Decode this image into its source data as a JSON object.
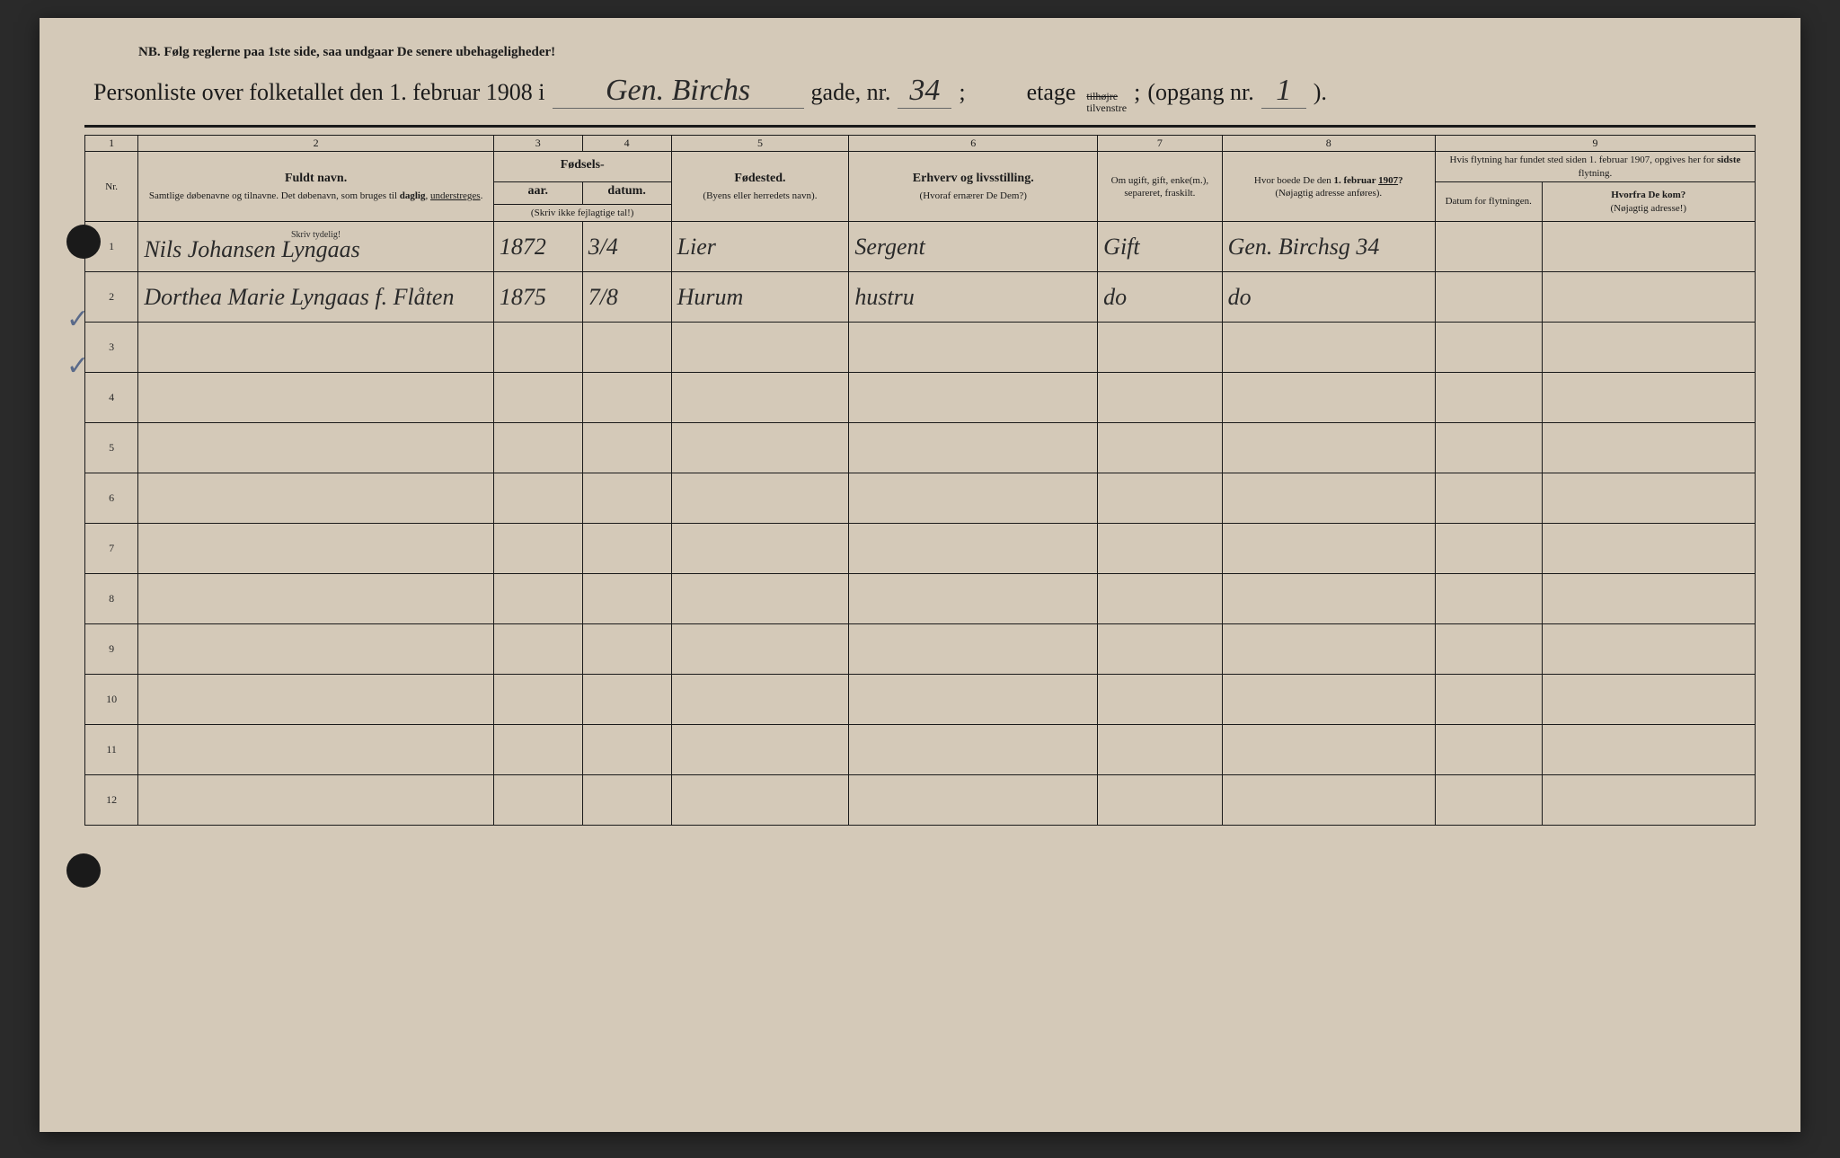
{
  "header": {
    "nb_text": "NB.  Følg reglerne paa 1ste side, saa undgaar De senere ubehageligheder!",
    "title_prefix": "Personliste over folketallet den 1. februar 1908 i",
    "street_name": "Gen. Birchs",
    "gade_label": "gade, nr.",
    "nr": "34",
    "semicolon": ";",
    "etage_label": "etage",
    "etage_top": "tilhøjre",
    "etage_bottom": "tilvenstre",
    "opgang_label": "(opgang nr.",
    "opgang_nr": "1",
    "opgang_close": ")."
  },
  "column_numbers": [
    "1",
    "2",
    "3",
    "4",
    "5",
    "6",
    "7",
    "8",
    "9"
  ],
  "headers": {
    "nr": "Nr.",
    "name_main": "Fuldt navn.",
    "name_sub": "Samtlige døbenavne og tilnavne. Det døbenavn, som bruges til daglig, understreges.",
    "birth_main": "Fødsels-",
    "birth_year": "aar.",
    "birth_date": "datum.",
    "birth_note": "(Skriv ikke fejlagtige tal!)",
    "birthplace_main": "Fødested.",
    "birthplace_sub": "(Byens eller herredets navn).",
    "occupation_main": "Erhverv og livsstilling.",
    "occupation_sub": "(Hvoraf ernærer De Dem?)",
    "marital": "Om ugift, gift, enke(m.), separeret, fraskilt.",
    "prev_addr_main": "Hvor boede De den 1. februar 1907?",
    "prev_addr_sub": "(Nøjagtig adresse anføres).",
    "move_main": "Hvis flytning har fundet sted siden 1. februar 1907, opgives her for sidste flytning.",
    "move_date": "Datum for flytningen.",
    "move_from_main": "Hvorfra De kom?",
    "move_from_sub": "(Nøjagtig adresse!)",
    "skriv_tydelig": "Skriv tydelig!"
  },
  "rows": [
    {
      "num": "1",
      "name": "Nils Johansen Lyngaas",
      "year": "1872",
      "date": "3/4",
      "birthplace": "Lier",
      "occupation": "Sergent",
      "marital": "Gift",
      "prev_addr": "Gen. Birchsg 34",
      "move_date": "",
      "from": ""
    },
    {
      "num": "2",
      "name": "Dorthea Marie Lyngaas f. Flåten",
      "year": "1875",
      "date": "7/8",
      "birthplace": "Hurum",
      "occupation": "hustru",
      "marital": "do",
      "prev_addr": "do",
      "move_date": "",
      "from": ""
    },
    {
      "num": "3",
      "name": "",
      "year": "",
      "date": "",
      "birthplace": "",
      "occupation": "",
      "marital": "",
      "prev_addr": "",
      "move_date": "",
      "from": ""
    },
    {
      "num": "4",
      "name": "",
      "year": "",
      "date": "",
      "birthplace": "",
      "occupation": "",
      "marital": "",
      "prev_addr": "",
      "move_date": "",
      "from": ""
    },
    {
      "num": "5",
      "name": "",
      "year": "",
      "date": "",
      "birthplace": "",
      "occupation": "",
      "marital": "",
      "prev_addr": "",
      "move_date": "",
      "from": ""
    },
    {
      "num": "6",
      "name": "",
      "year": "",
      "date": "",
      "birthplace": "",
      "occupation": "",
      "marital": "",
      "prev_addr": "",
      "move_date": "",
      "from": ""
    },
    {
      "num": "7",
      "name": "",
      "year": "",
      "date": "",
      "birthplace": "",
      "occupation": "",
      "marital": "",
      "prev_addr": "",
      "move_date": "",
      "from": ""
    },
    {
      "num": "8",
      "name": "",
      "year": "",
      "date": "",
      "birthplace": "",
      "occupation": "",
      "marital": "",
      "prev_addr": "",
      "move_date": "",
      "from": ""
    },
    {
      "num": "9",
      "name": "",
      "year": "",
      "date": "",
      "birthplace": "",
      "occupation": "",
      "marital": "",
      "prev_addr": "",
      "move_date": "",
      "from": ""
    },
    {
      "num": "10",
      "name": "",
      "year": "",
      "date": "",
      "birthplace": "",
      "occupation": "",
      "marital": "",
      "prev_addr": "",
      "move_date": "",
      "from": ""
    },
    {
      "num": "11",
      "name": "",
      "year": "",
      "date": "",
      "birthplace": "",
      "occupation": "",
      "marital": "",
      "prev_addr": "",
      "move_date": "",
      "from": ""
    },
    {
      "num": "12",
      "name": "",
      "year": "",
      "date": "",
      "birthplace": "",
      "occupation": "",
      "marital": "",
      "prev_addr": "",
      "move_date": "",
      "from": ""
    }
  ],
  "colors": {
    "page_bg": "#d4c9b8",
    "text": "#1a1a1a",
    "handwriting": "#2a2a2a",
    "checkmark": "#5a6a8a"
  }
}
